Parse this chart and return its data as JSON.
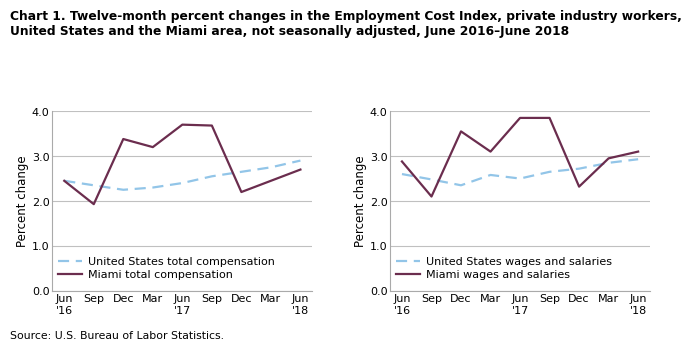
{
  "title_line1": "Chart 1. Twelve-month percent changes in the Employment Cost Index, private industry workers,",
  "title_line2": "United States and the Miami area, not seasonally adjusted, June 2016–June 2018",
  "source": "Source: U.S. Bureau of Labor Statistics.",
  "ylabel": "Percent change",
  "x_labels": [
    "Jun\n'16",
    "Sep",
    "Dec",
    "Mar",
    "Jun\n'17",
    "Sep",
    "Dec",
    "Mar",
    "Jun\n'18"
  ],
  "ylim": [
    0.0,
    4.0
  ],
  "yticks": [
    0.0,
    1.0,
    2.0,
    3.0,
    4.0
  ],
  "left_us": [
    2.45,
    2.35,
    2.25,
    2.3,
    2.4,
    2.55,
    2.65,
    2.75,
    2.9
  ],
  "left_miami": [
    2.45,
    1.93,
    3.38,
    3.2,
    3.7,
    3.68,
    2.2,
    2.45,
    2.7
  ],
  "right_us": [
    2.6,
    2.48,
    2.35,
    2.58,
    2.5,
    2.65,
    2.72,
    2.85,
    2.93
  ],
  "right_miami": [
    2.88,
    2.1,
    3.55,
    3.1,
    3.85,
    3.85,
    2.32,
    2.95,
    3.1
  ],
  "us_color": "#92C5E8",
  "miami_color": "#6B2D4E",
  "left_legend1": "United States total compensation",
  "left_legend2": "Miami total compensation",
  "right_legend1": "United States wages and salaries",
  "right_legend2": "Miami wages and salaries",
  "grid_color": "#c0c0c0",
  "title_fontsize": 8.8,
  "axis_label_fontsize": 8.5,
  "tick_fontsize": 8.0,
  "legend_fontsize": 8.0
}
